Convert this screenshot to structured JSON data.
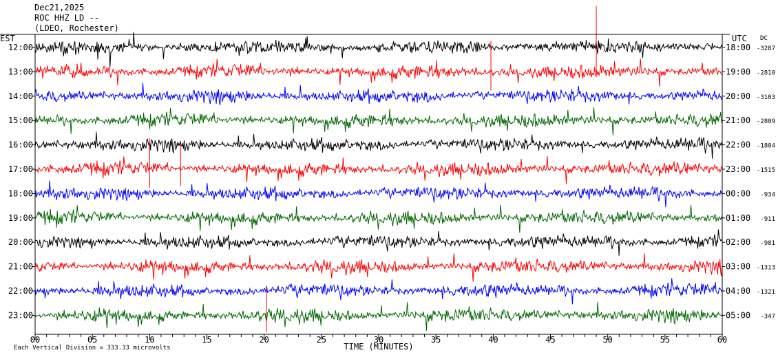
{
  "header": {
    "date": "Dec21,2025",
    "station": "ROC HHZ LD --",
    "location": "(LDEO, Rochester)"
  },
  "chart_data": {
    "type": "line",
    "title": "",
    "xlabel": "TIME (MINUTES)",
    "xlim": [
      0,
      60
    ],
    "x_ticks": [
      "00",
      "05",
      "10",
      "15",
      "20",
      "25",
      "30",
      "35",
      "40",
      "45",
      "50",
      "55",
      "60"
    ],
    "left_axis_label": "EST",
    "right_axis_label": "UTC",
    "dc_label": "DC",
    "footer_note": "Each Vertical Division =  333.33 microvolts",
    "trace_colors": [
      "#000000",
      "#ff0000",
      "#0000ff",
      "#006600"
    ],
    "rows": [
      {
        "est": "12:00",
        "utc": "18:00",
        "dc": "-3287"
      },
      {
        "est": "13:00",
        "utc": "19:00",
        "dc": "-2810"
      },
      {
        "est": "14:00",
        "utc": "20:00",
        "dc": "-3103"
      },
      {
        "est": "15:00",
        "utc": "21:00",
        "dc": "-2809"
      },
      {
        "est": "16:00",
        "utc": "22:00",
        "dc": "-1804"
      },
      {
        "est": "17:00",
        "utc": "23:00",
        "dc": "-1515"
      },
      {
        "est": "18:00",
        "utc": "00:00",
        "dc": "-934"
      },
      {
        "est": "19:00",
        "utc": "01:00",
        "dc": "-911"
      },
      {
        "est": "20:00",
        "utc": "02:00",
        "dc": "-981"
      },
      {
        "est": "21:00",
        "utc": "03:00",
        "dc": "-1313"
      },
      {
        "est": "22:00",
        "utc": "04:00",
        "dc": "-1321"
      },
      {
        "est": "23:00",
        "utc": "05:00",
        "dc": "-347"
      }
    ]
  }
}
